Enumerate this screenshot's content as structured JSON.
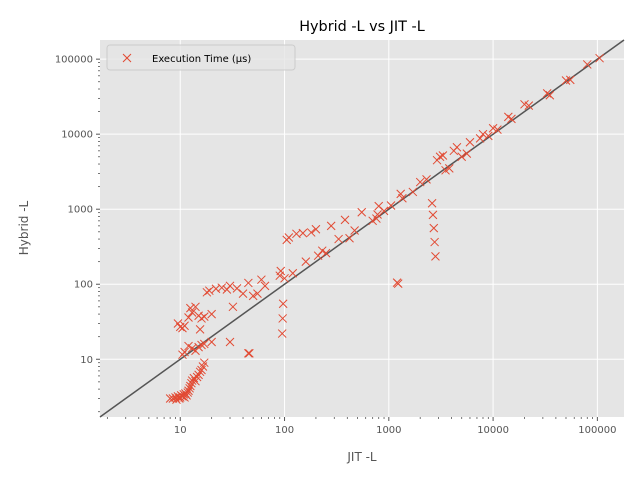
{
  "chart_data": {
    "type": "scatter",
    "title": "Hybrid -L vs JIT -L",
    "xlabel": "JIT -L",
    "ylabel": "Hybrid -L",
    "xscale": "log",
    "yscale": "log",
    "xlim": [
      1.7,
      180000
    ],
    "ylim": [
      1.7,
      180000
    ],
    "x_ticks": [
      {
        "value": 10,
        "label": "10"
      },
      {
        "value": 100,
        "label": "100"
      },
      {
        "value": 1000,
        "label": "1000"
      },
      {
        "value": 10000,
        "label": "10000"
      },
      {
        "value": 100000,
        "label": "100000"
      }
    ],
    "y_ticks": [
      {
        "value": 10,
        "label": "10"
      },
      {
        "value": 100,
        "label": "100"
      },
      {
        "value": 1000,
        "label": "1000"
      },
      {
        "value": 10000,
        "label": "10000"
      },
      {
        "value": 100000,
        "label": "100000"
      }
    ],
    "grid": true,
    "legend": {
      "position": "top-left",
      "entries": [
        {
          "label": "Execution Time (µs)",
          "marker": "x",
          "color": "#E24A33"
        }
      ]
    },
    "reference_line": {
      "label": "",
      "slope": 1,
      "color": "#555555"
    },
    "series": [
      {
        "name": "Execution Time (µs)",
        "marker": "x",
        "color": "#E24A33",
        "points": [
          [
            8,
            3
          ],
          [
            8.5,
            3
          ],
          [
            9,
            3.1
          ],
          [
            9.2,
            2.9
          ],
          [
            9.5,
            3.2
          ],
          [
            9.8,
            3
          ],
          [
            10,
            3.1
          ],
          [
            10.2,
            3.3
          ],
          [
            10.5,
            3.2
          ],
          [
            10.8,
            3.4
          ],
          [
            11,
            3.1
          ],
          [
            11.2,
            3.5
          ],
          [
            11.5,
            3.3
          ],
          [
            11.8,
            3.6
          ],
          [
            12,
            3.8
          ],
          [
            12.3,
            4.1
          ],
          [
            12.5,
            4.4
          ],
          [
            12.8,
            4.8
          ],
          [
            13,
            5.2
          ],
          [
            13.5,
            5.6
          ],
          [
            14,
            5.1
          ],
          [
            14.5,
            5.8
          ],
          [
            15,
            6.2
          ],
          [
            15.5,
            6.8
          ],
          [
            16,
            7.2
          ],
          [
            16.5,
            8
          ],
          [
            17,
            9
          ],
          [
            10.5,
            11.5
          ],
          [
            11,
            12.5
          ],
          [
            12,
            15
          ],
          [
            13,
            14
          ],
          [
            14,
            13
          ],
          [
            15,
            14.5
          ],
          [
            16,
            15.5
          ],
          [
            17,
            16
          ],
          [
            20,
            17
          ],
          [
            30,
            17
          ],
          [
            45,
            12
          ],
          [
            46,
            12
          ],
          [
            9.5,
            30
          ],
          [
            10,
            27
          ],
          [
            10.5,
            26
          ],
          [
            11,
            28
          ],
          [
            12,
            36
          ],
          [
            12.5,
            48
          ],
          [
            13,
            42
          ],
          [
            14,
            50
          ],
          [
            15,
            38
          ],
          [
            15.5,
            25
          ],
          [
            16,
            35
          ],
          [
            17,
            37
          ],
          [
            18,
            78
          ],
          [
            19,
            82
          ],
          [
            20,
            40
          ],
          [
            22,
            87
          ],
          [
            25,
            90
          ],
          [
            28,
            85
          ],
          [
            30,
            95
          ],
          [
            32,
            50
          ],
          [
            35,
            88
          ],
          [
            40,
            75
          ],
          [
            45,
            104
          ],
          [
            50,
            70
          ],
          [
            55,
            75
          ],
          [
            60,
            115
          ],
          [
            65,
            95
          ],
          [
            90,
            130
          ],
          [
            92,
            150
          ],
          [
            95,
            22
          ],
          [
            96,
            35
          ],
          [
            97,
            55
          ],
          [
            100,
            120
          ],
          [
            105,
            390
          ],
          [
            110,
            420
          ],
          [
            120,
            140
          ],
          [
            130,
            470
          ],
          [
            150,
            480
          ],
          [
            160,
            200
          ],
          [
            180,
            490
          ],
          [
            200,
            540
          ],
          [
            210,
            240
          ],
          [
            230,
            280
          ],
          [
            250,
            260
          ],
          [
            280,
            600
          ],
          [
            330,
            400
          ],
          [
            380,
            720
          ],
          [
            420,
            410
          ],
          [
            470,
            520
          ],
          [
            550,
            910
          ],
          [
            700,
            700
          ],
          [
            760,
            750
          ],
          [
            780,
            850
          ],
          [
            800,
            1100
          ],
          [
            900,
            950
          ],
          [
            1050,
            1120
          ],
          [
            1200,
            105
          ],
          [
            1230,
            102
          ],
          [
            1300,
            1600
          ],
          [
            1350,
            1400
          ],
          [
            1700,
            1700
          ],
          [
            2000,
            2300
          ],
          [
            2300,
            2500
          ],
          [
            2600,
            1200
          ],
          [
            2650,
            840
          ],
          [
            2700,
            560
          ],
          [
            2750,
            365
          ],
          [
            2800,
            235
          ],
          [
            2900,
            4500
          ],
          [
            3100,
            5000
          ],
          [
            3300,
            5200
          ],
          [
            3500,
            3300
          ],
          [
            3800,
            3500
          ],
          [
            4200,
            6000
          ],
          [
            4500,
            6700
          ],
          [
            5000,
            5000
          ],
          [
            5600,
            5500
          ],
          [
            6000,
            7800
          ],
          [
            7500,
            8800
          ],
          [
            8000,
            10000
          ],
          [
            9000,
            9500
          ],
          [
            10000,
            12000
          ],
          [
            11000,
            11500
          ],
          [
            14000,
            17000
          ],
          [
            15000,
            16000
          ],
          [
            20000,
            25000
          ],
          [
            22000,
            24000
          ],
          [
            33000,
            35000
          ],
          [
            35000,
            33000
          ],
          [
            50000,
            52000
          ],
          [
            55000,
            53000
          ],
          [
            80000,
            85000
          ],
          [
            105000,
            103000
          ]
        ]
      }
    ]
  }
}
